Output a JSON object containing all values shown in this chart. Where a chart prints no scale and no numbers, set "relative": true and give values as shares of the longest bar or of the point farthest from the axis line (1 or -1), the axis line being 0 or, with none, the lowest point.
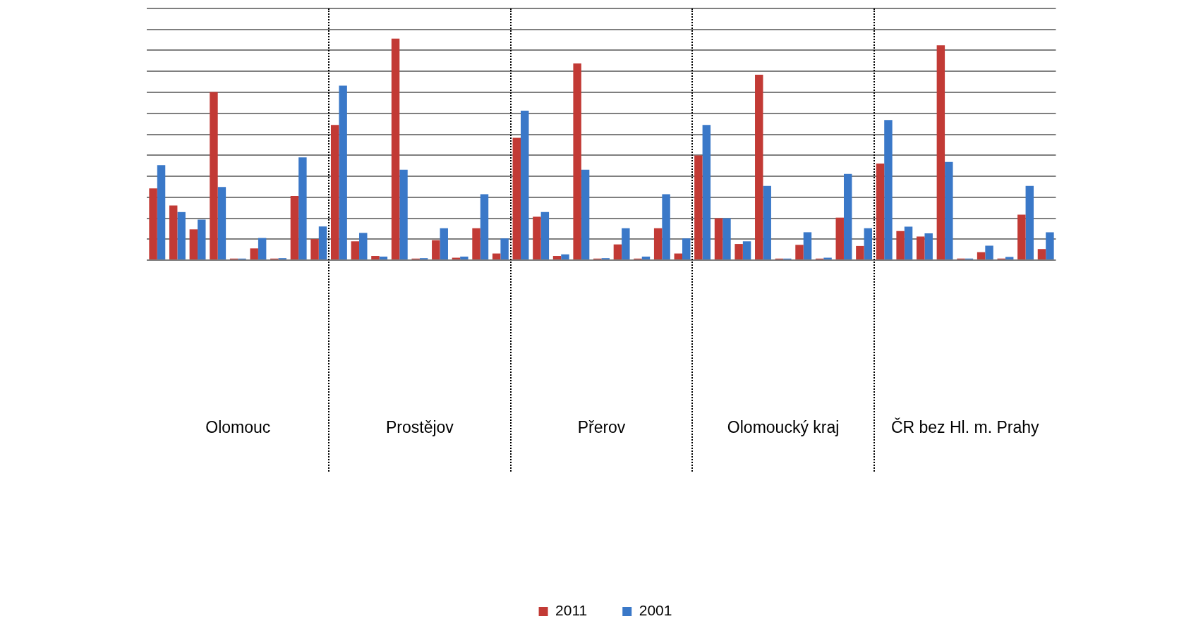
{
  "chart_data": {
    "type": "bar",
    "relative": true,
    "grid": "y",
    "legend": "bottom",
    "categories": [
      null,
      null,
      null,
      null,
      "Olomouc",
      null,
      null,
      null,
      null,
      null,
      null,
      null,
      null,
      "Prostějov",
      null,
      null,
      null,
      null,
      null,
      null,
      null,
      null,
      "Přerov",
      null,
      null,
      null,
      null,
      null,
      null,
      null,
      null,
      "Olomoucký kraj",
      null,
      null,
      null,
      null,
      null,
      null,
      null,
      null,
      "ČR bez Hl. m. Prahy",
      null,
      null,
      null,
      null
    ],
    "series": [
      {
        "name": "2011",
        "color": "#c23a35",
        "values": [
          0.324,
          0.247,
          0.139,
          0.759,
          0.007,
          0.053,
          0.007,
          0.29,
          0.095,
          0.61,
          0.085,
          0.019,
          1,
          0.007,
          0.09,
          0.011,
          0.144,
          0.03,
          0.552,
          0.196,
          0.019,
          0.888,
          0.007,
          0.071,
          0.007,
          0.144,
          0.03,
          0.473,
          0.189,
          0.073,
          0.837,
          0.007,
          0.069,
          0.007,
          0.192,
          0.064,
          0.436,
          0.131,
          0.107,
          0.97,
          0.007,
          0.036,
          0.007,
          0.205,
          0.05
        ]
      },
      {
        "name": "2001",
        "color": "#3a78c8",
        "values": [
          0.429,
          0.217,
          0.183,
          0.33,
          0.007,
          0.1,
          0.009,
          0.464,
          0.152,
          0.788,
          0.123,
          0.016,
          0.408,
          0.009,
          0.144,
          0.016,
          0.298,
          0.098,
          0.675,
          0.217,
          0.026,
          0.408,
          0.009,
          0.144,
          0.016,
          0.298,
          0.098,
          0.61,
          0.189,
          0.085,
          0.335,
          0.007,
          0.126,
          0.011,
          0.389,
          0.144,
          0.633,
          0.151,
          0.121,
          0.443,
          0.007,
          0.065,
          0.014,
          0.335,
          0.126
        ]
      }
    ]
  }
}
